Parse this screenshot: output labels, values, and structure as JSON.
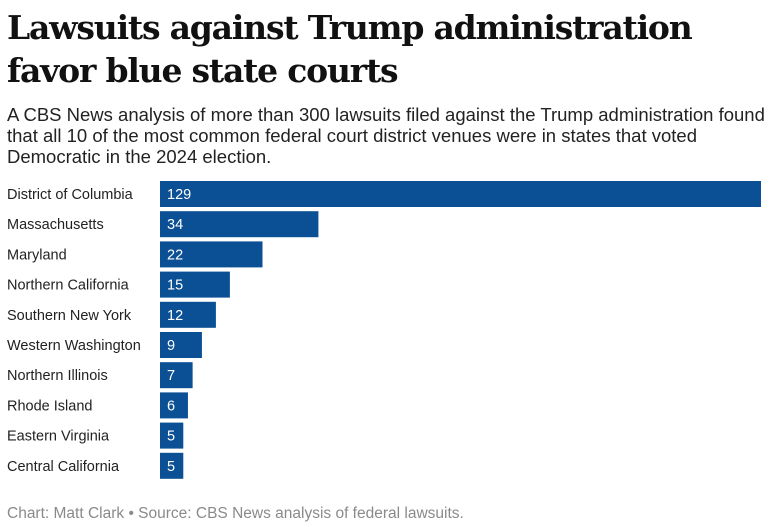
{
  "title": "Lawsuits against Trump administration favor blue state courts",
  "subtitle": "A CBS News analysis of more than 300 lawsuits filed against the Trump administration found that all 10 of the most common federal court district venues were in states that voted Democratic in the 2024 election.",
  "source": "Chart: Matt Clark • Source: CBS News analysis of federal lawsuits.",
  "colors": {
    "bar": "#0b4f95",
    "label_in_bar": "#ffffff"
  },
  "chart_data": {
    "type": "bar",
    "orientation": "horizontal",
    "title": "Lawsuits against Trump administration favor blue state courts",
    "categories": [
      "District of Columbia",
      "Massachusetts",
      "Maryland",
      "Northern California",
      "Southern New York",
      "Western Washington",
      "Northern Illinois",
      "Rhode Island",
      "Eastern Virginia",
      "Central California"
    ],
    "values": [
      129,
      34,
      22,
      15,
      12,
      9,
      7,
      6,
      5,
      5
    ],
    "xlim": [
      0,
      129
    ],
    "grid": false,
    "data_labels": true
  }
}
